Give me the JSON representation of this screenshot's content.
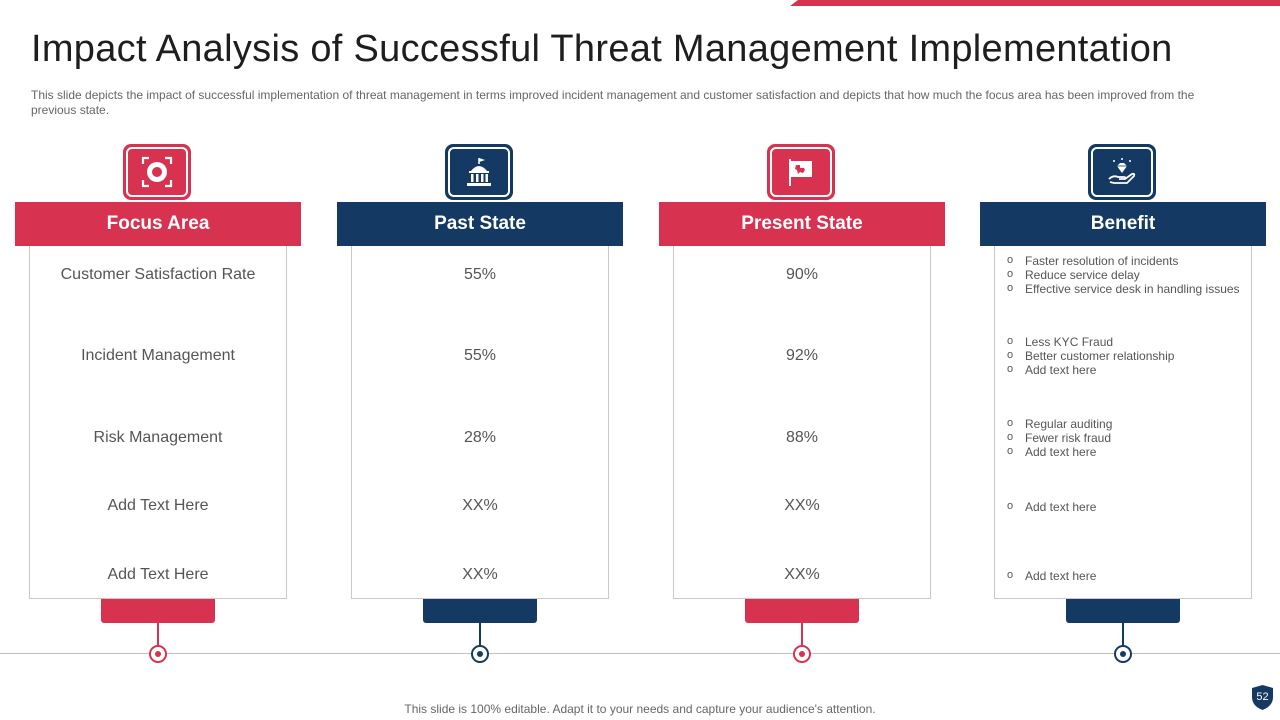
{
  "slide": {
    "title": "Impact Analysis of Successful Threat Management Implementation",
    "subtitle": "This slide depicts the impact of successful implementation of threat management in terms improved  incident management and customer satisfaction and depicts that how much the focus area has been improved  from the previous  state.",
    "footer_note": "This slide is 100% editable. Adapt it to your needs and capture your audience's attention.",
    "page_number": "52"
  },
  "colors": {
    "accent_red": "#d7324f",
    "accent_navy": "#143a63"
  },
  "columns": {
    "focus": {
      "header": "Focus Area",
      "icon": "target-icon",
      "rows": [
        "Customer Satisfaction Rate",
        "Incident Management",
        "Risk Management",
        "Add Text Here",
        "Add Text Here"
      ]
    },
    "past": {
      "header": "Past State",
      "icon": "building-icon",
      "rows": [
        "55%",
        "55%",
        "28%",
        "XX%",
        "XX%"
      ]
    },
    "present": {
      "header": "Present State",
      "icon": "flag-map-icon",
      "rows": [
        "90%",
        "92%",
        "88%",
        "XX%",
        "XX%"
      ]
    },
    "benefit": {
      "header": "Benefit",
      "icon": "diamond-hand-icon",
      "groups": [
        [
          "Faster resolution of incidents",
          "Reduce service delay",
          "Effective service desk in handling issues"
        ],
        [
          "Less KYC Fraud",
          "Better customer relationship",
          "Add text here"
        ],
        [
          "Regular auditing",
          "Fewer risk fraud",
          "Add text here"
        ],
        [
          "Add text here"
        ],
        [
          "Add text here"
        ]
      ]
    }
  }
}
